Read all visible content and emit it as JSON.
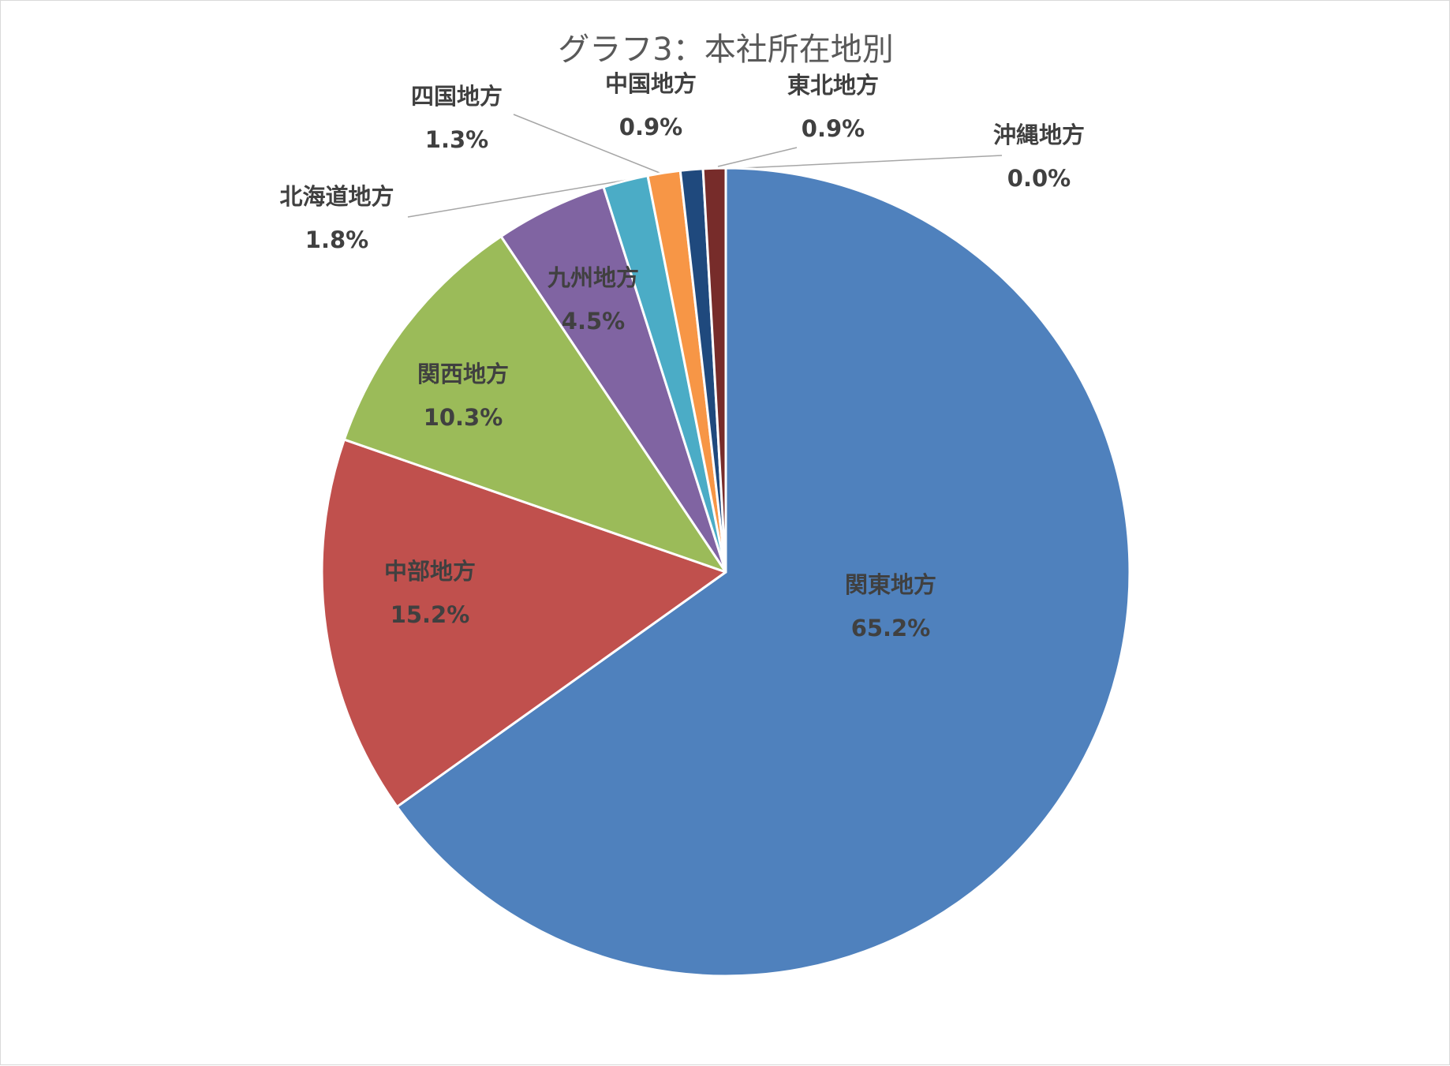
{
  "chart_data": {
    "type": "pie",
    "title": "グラフ3：本社所在地別",
    "start_angle_deg": 0,
    "direction": "clockwise",
    "legend": "none",
    "slices": [
      {
        "label": "関東地方",
        "value": 65.2,
        "value_label": "65.2%",
        "color": "#4F81BD"
      },
      {
        "label": "中部地方",
        "value": 15.2,
        "value_label": "15.2%",
        "color": "#C0504D"
      },
      {
        "label": "関西地方",
        "value": 10.3,
        "value_label": "10.3%",
        "color": "#9BBB59"
      },
      {
        "label": "九州地方",
        "value": 4.5,
        "value_label": "4.5%",
        "color": "#8064A2"
      },
      {
        "label": "北海道地方",
        "value": 1.8,
        "value_label": "1.8%",
        "color": "#4BACC6"
      },
      {
        "label": "四国地方",
        "value": 1.3,
        "value_label": "1.3%",
        "color": "#F79646"
      },
      {
        "label": "中国地方",
        "value": 0.9,
        "value_label": "0.9%",
        "color": "#1F497D"
      },
      {
        "label": "東北地方",
        "value": 0.9,
        "value_label": "0.9%",
        "color": "#772C2A"
      },
      {
        "label": "沖縄地方",
        "value": 0.0,
        "value_label": "0.0%",
        "color": "#5F7530"
      }
    ]
  }
}
